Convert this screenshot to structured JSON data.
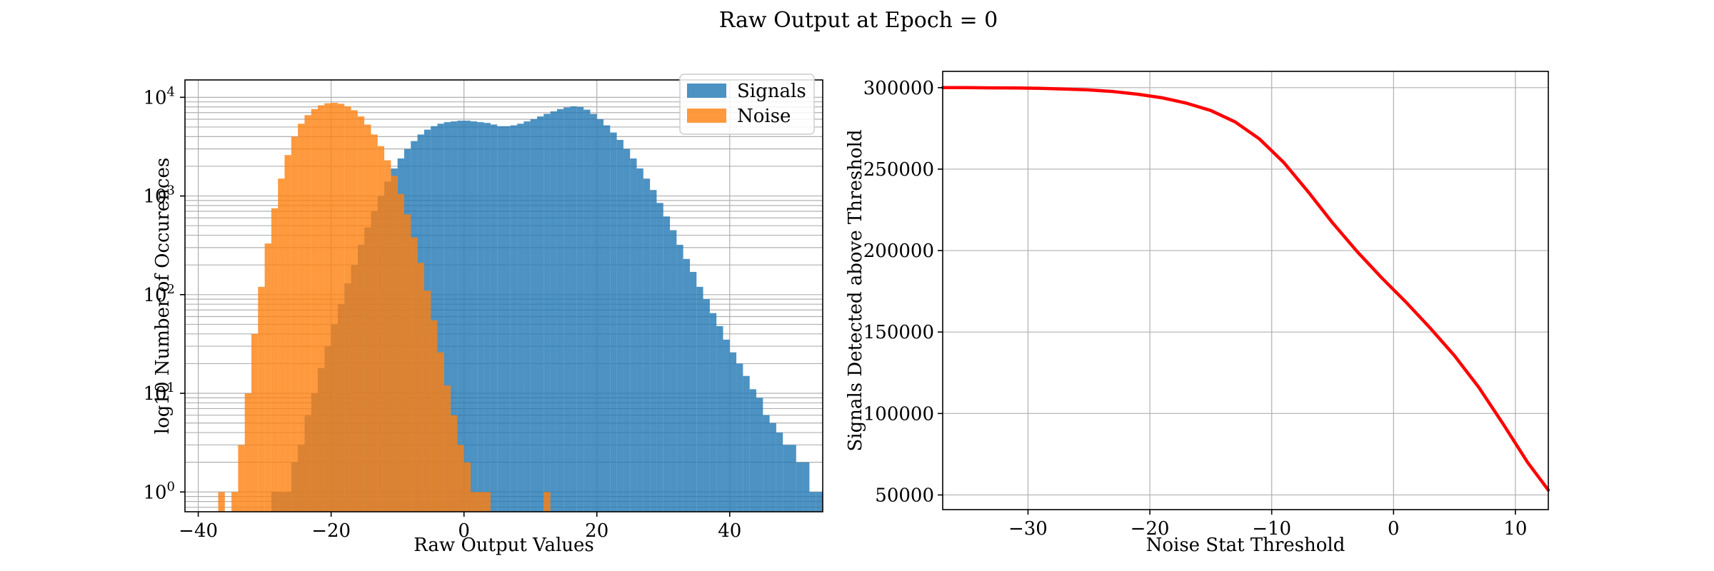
{
  "figure": {
    "title": "Raw Output at Epoch = 0"
  },
  "chart_data": [
    {
      "type": "histogram",
      "xlabel": "Raw Output Values",
      "ylabel": "log10 Number of Occurences",
      "y_scale": "log",
      "xlim": [
        -42,
        54
      ],
      "ylim": [
        0.63,
        15000
      ],
      "x_ticks": [
        -40,
        -20,
        0,
        20,
        40
      ],
      "x_tick_labels": [
        "−40",
        "−20",
        "0",
        "20",
        "40"
      ],
      "y_ticks": [
        1,
        10,
        100,
        1000,
        10000
      ],
      "y_tick_labels": [
        {
          "base": "10",
          "exp": "0"
        },
        {
          "base": "10",
          "exp": "1"
        },
        {
          "base": "10",
          "exp": "2"
        },
        {
          "base": "10",
          "exp": "3"
        },
        {
          "base": "10",
          "exp": "4"
        }
      ],
      "grid": true,
      "legend_position": "top-right",
      "series": [
        {
          "name": "Signals",
          "color": "#1f77b4",
          "opacity": 0.8,
          "bin_start": -36,
          "bin_width": 1,
          "counts": [
            0,
            0,
            0,
            0,
            0,
            0,
            0,
            1,
            1,
            1,
            2,
            3,
            6,
            10,
            18,
            30,
            50,
            80,
            130,
            200,
            320,
            480,
            700,
            1000,
            1400,
            1900,
            2400,
            3000,
            3600,
            4200,
            4700,
            5100,
            5400,
            5600,
            5700,
            5800,
            5800,
            5700,
            5600,
            5500,
            5300,
            5100,
            5100,
            5200,
            5400,
            5700,
            6000,
            6400,
            6800,
            7200,
            7600,
            7900,
            8100,
            8000,
            7500,
            6800,
            6000,
            5200,
            4400,
            3700,
            3000,
            2400,
            1900,
            1500,
            1150,
            850,
            620,
            450,
            320,
            230,
            170,
            120,
            90,
            65,
            48,
            35,
            26,
            20,
            15,
            11,
            9,
            6,
            5,
            4,
            3,
            3,
            2,
            2,
            1,
            1,
            0
          ]
        },
        {
          "name": "Noise",
          "color": "#ff7f0e",
          "opacity": 0.8,
          "bin_start": -37,
          "bin_width": 1,
          "counts": [
            1,
            0,
            1,
            3,
            10,
            40,
            120,
            330,
            750,
            1500,
            2600,
            4000,
            5400,
            6600,
            7600,
            8300,
            8700,
            8800,
            8600,
            8100,
            7400,
            6400,
            5300,
            4200,
            3200,
            2300,
            1600,
            1050,
            650,
            380,
            210,
            110,
            55,
            26,
            12,
            6,
            3,
            2,
            1,
            1,
            1,
            0,
            0,
            0,
            0,
            0,
            0,
            0,
            0,
            1
          ]
        }
      ]
    },
    {
      "type": "line",
      "xlabel": "Noise Stat Threshold",
      "ylabel": "Signals Detected above Threshold",
      "xlim": [
        -37,
        12.7
      ],
      "ylim": [
        41000,
        310000
      ],
      "x_ticks": [
        -30,
        -20,
        -10,
        0,
        10
      ],
      "x_tick_labels": [
        "−30",
        "−20",
        "−10",
        "0",
        "10"
      ],
      "y_ticks": [
        50000,
        100000,
        150000,
        200000,
        250000,
        300000
      ],
      "y_tick_labels": [
        "50000",
        "100000",
        "150000",
        "200000",
        "250000",
        "300000"
      ],
      "grid": true,
      "series": [
        {
          "color": "#ff0000",
          "x": [
            -37,
            -35,
            -33,
            -31,
            -29,
            -27,
            -25,
            -23,
            -21,
            -19,
            -17,
            -15,
            -13,
            -11,
            -9,
            -7,
            -5,
            -3,
            -1,
            0,
            1,
            3,
            5,
            7,
            9,
            11,
            12.7
          ],
          "y": [
            300000,
            300000,
            299900,
            299800,
            299600,
            299200,
            298600,
            297600,
            296000,
            293800,
            290500,
            286000,
            279000,
            268500,
            254000,
            236000,
            217000,
            199500,
            183500,
            176000,
            168500,
            152500,
            135500,
            116000,
            93500,
            70000,
            53000
          ]
        }
      ]
    }
  ]
}
